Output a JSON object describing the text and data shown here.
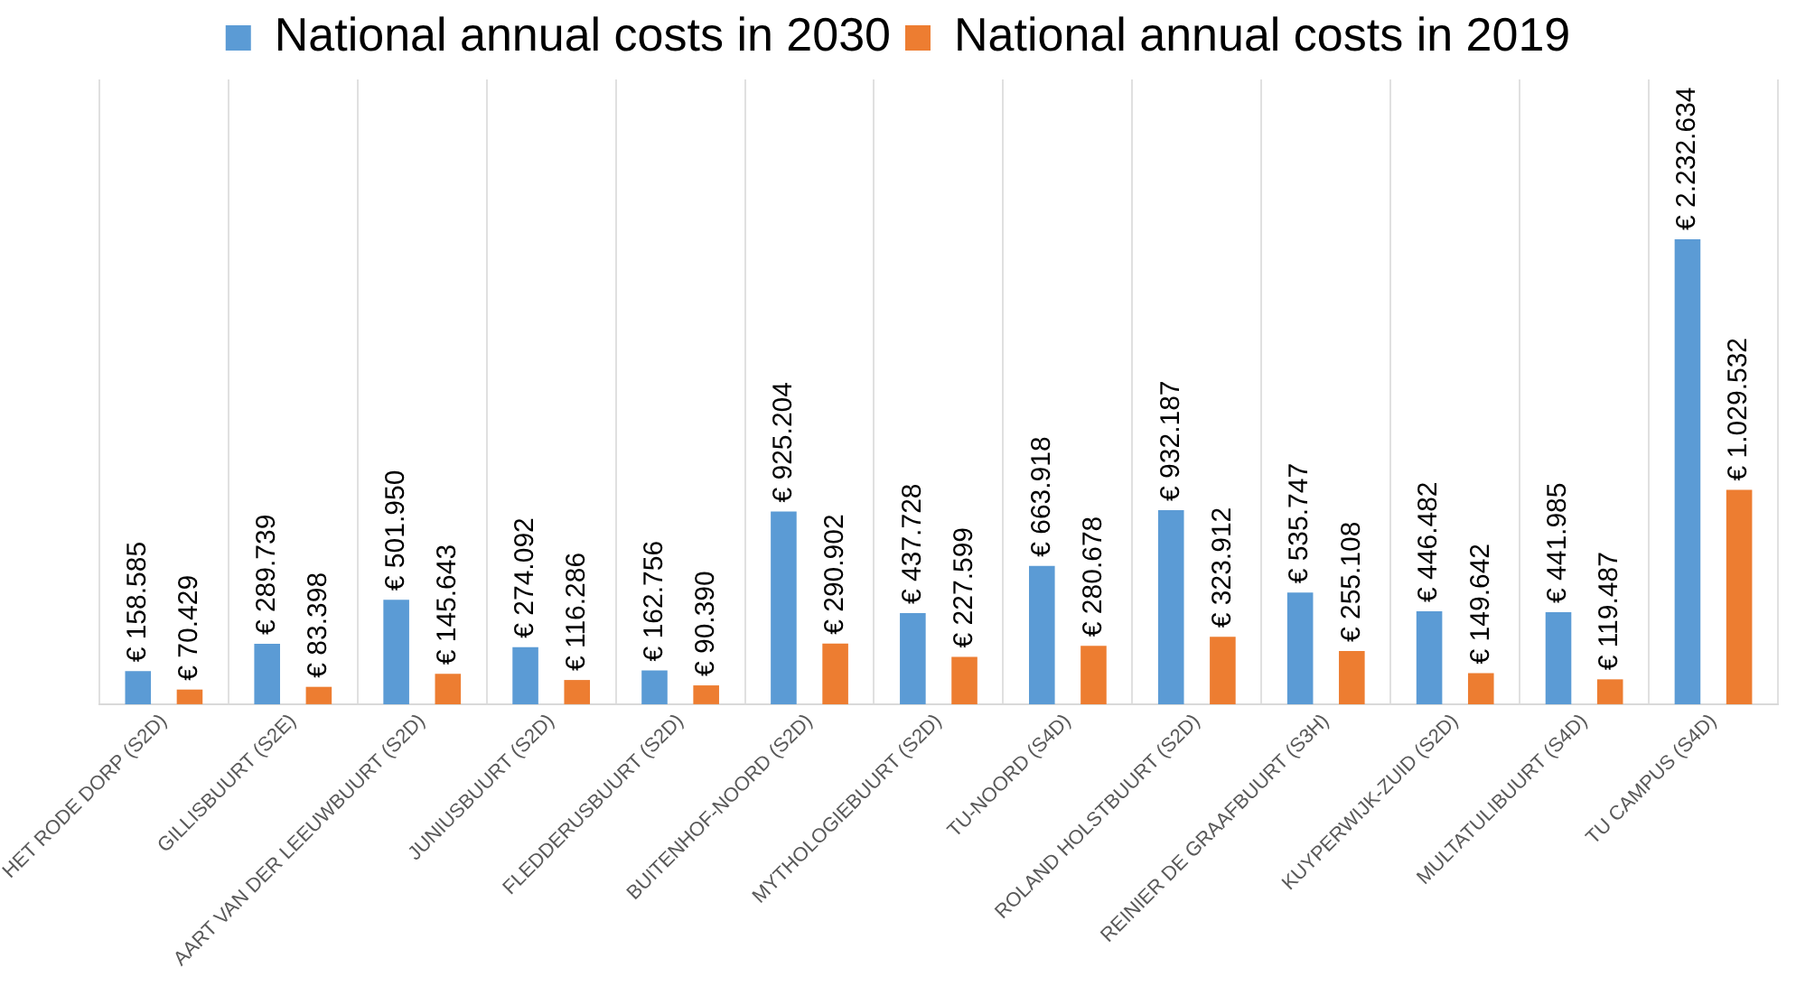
{
  "chart_data": {
    "type": "bar",
    "categories": [
      "HET RODE DORP (S2D)",
      "GILLISBUURT (S2E)",
      "AART VAN DER LEEUWBUURT (S2D)",
      "JUNIUSBUURT (S2D)",
      "FLEDDERUSBUURT (S2D)",
      "BUITENHOF-NOORD (S2D)",
      "MYTHOLOGIEBUURT (S2D)",
      "TU-NOORD (S4D)",
      "ROLAND HOLSTBUURT (S2D)",
      "REINIER DE GRAAFBUURT (S3H)",
      "KUYPERWIJK-ZUID (S2D)",
      "MULTATULIBUURT (S4D)",
      "TU CAMPUS (S4D)"
    ],
    "series": [
      {
        "name": "National annual costs in 2030",
        "color": "#5b9bd5",
        "values": [
          158585,
          289739,
          501950,
          274092,
          162756,
          925204,
          437728,
          663918,
          932187,
          535747,
          446482,
          441985,
          2232634
        ],
        "value_labels": [
          "€ 158.585",
          "€ 289.739",
          "€ 501.950",
          "€ 274.092",
          "€ 162.756",
          "€ 925.204",
          "€ 437.728",
          "€ 663.918",
          "€ 932.187",
          "€ 535.747",
          "€ 446.482",
          "€ 441.985",
          "€ 2.232.634"
        ]
      },
      {
        "name": "National annual costs in 2019",
        "color": "#ed7d31",
        "values": [
          70429,
          83398,
          145643,
          116286,
          90390,
          290902,
          227599,
          280678,
          323912,
          255108,
          149642,
          119487,
          1029532
        ],
        "value_labels": [
          "€ 70.429",
          "€ 83.398",
          "€ 145.643",
          "€ 116.286",
          "€ 90.390",
          "€ 290.902",
          "€ 227.599",
          "€ 280.678",
          "€ 323.912",
          "€ 255.108",
          "€ 149.642",
          "€ 119.487",
          "€ 1.029.532"
        ]
      }
    ],
    "grid": "x",
    "legend": "top",
    "tick_labels": "x"
  }
}
